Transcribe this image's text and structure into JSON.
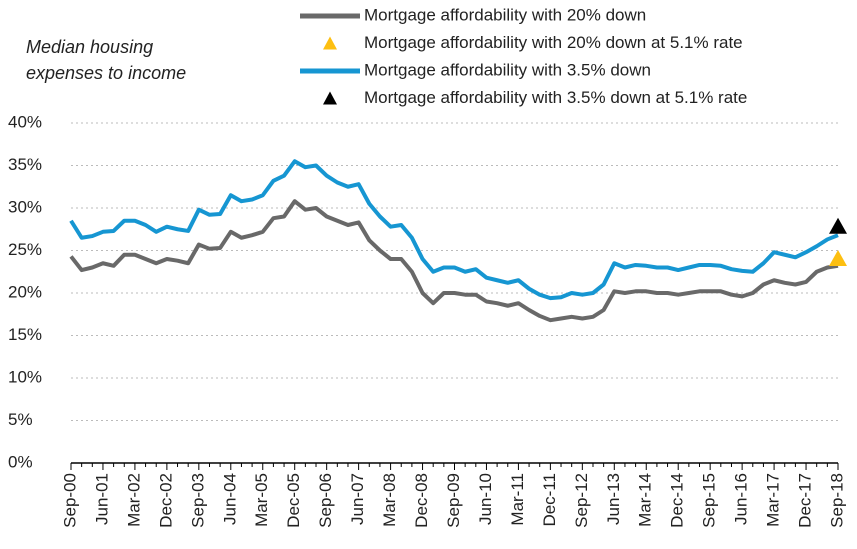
{
  "chart_data": {
    "type": "line",
    "title": "Median housing expenses to income",
    "categories": [
      "Sep-00",
      null,
      null,
      "Jun-01",
      null,
      null,
      "Mar-02",
      null,
      null,
      "Dec-02",
      null,
      null,
      "Sep-03",
      null,
      null,
      "Jun-04",
      null,
      null,
      "Mar-05",
      null,
      null,
      "Dec-05",
      null,
      null,
      "Sep-06",
      null,
      null,
      "Jun-07",
      null,
      null,
      "Mar-08",
      null,
      null,
      "Dec-08",
      null,
      null,
      "Sep-09",
      null,
      null,
      "Jun-10",
      null,
      null,
      "Mar-11",
      null,
      null,
      "Dec-11",
      null,
      null,
      "Sep-12",
      null,
      null,
      "Jun-13",
      null,
      null,
      "Mar-14",
      null,
      null,
      "Dec-14",
      null,
      null,
      "Sep-15",
      null,
      null,
      "Jun-16",
      null,
      null,
      "Mar-17",
      null,
      null,
      "Dec-17",
      null,
      null,
      "Sep-18"
    ],
    "series": [
      {
        "name": "Mortgage affordability with 20% down",
        "color": "#696969",
        "style": "line",
        "values": [
          24.3,
          22.7,
          23,
          23.5,
          23.2,
          24.5,
          24.5,
          24,
          23.5,
          24,
          23.8,
          23.5,
          25.7,
          25.2,
          25.3,
          27.2,
          26.5,
          26.8,
          27.2,
          28.8,
          29,
          30.8,
          29.8,
          30,
          29,
          28.5,
          28,
          28.3,
          26.2,
          25,
          24,
          24,
          22.5,
          20,
          18.8,
          20,
          20,
          19.8,
          19.8,
          19,
          18.8,
          18.5,
          18.8,
          18,
          17.3,
          16.8,
          17,
          17.2,
          17,
          17.2,
          18,
          20.2,
          20,
          20.2,
          20.2,
          20,
          20,
          19.8,
          20,
          20.2,
          20.2,
          20.2,
          19.8,
          19.6,
          20,
          21,
          21.5,
          21.2,
          21,
          21.3,
          22.5,
          23,
          23.2
        ]
      },
      {
        "name": "Mortgage affordability with 20% down at 5.1% rate",
        "color": "#fdbf11",
        "style": "triangle",
        "values": [
          null,
          null,
          null,
          null,
          null,
          null,
          null,
          null,
          null,
          null,
          null,
          null,
          null,
          null,
          null,
          null,
          null,
          null,
          null,
          null,
          null,
          null,
          null,
          null,
          null,
          null,
          null,
          null,
          null,
          null,
          null,
          null,
          null,
          null,
          null,
          null,
          null,
          null,
          null,
          null,
          null,
          null,
          null,
          null,
          null,
          null,
          null,
          null,
          null,
          null,
          null,
          null,
          null,
          null,
          null,
          null,
          null,
          null,
          null,
          null,
          null,
          null,
          null,
          null,
          null,
          null,
          null,
          null,
          null,
          null,
          null,
          null,
          24
        ]
      },
      {
        "name": "Mortgage affordability with 3.5% down",
        "color": "#1696d2",
        "style": "line",
        "values": [
          28.5,
          26.5,
          26.7,
          27.2,
          27.3,
          28.5,
          28.5,
          28,
          27.2,
          27.8,
          27.5,
          27.3,
          29.8,
          29.2,
          29.3,
          31.5,
          30.8,
          31,
          31.5,
          33.2,
          33.8,
          35.5,
          34.8,
          35,
          33.8,
          33,
          32.5,
          32.8,
          30.5,
          29,
          27.8,
          28,
          26.5,
          24,
          22.5,
          23,
          23,
          22.5,
          22.8,
          21.8,
          21.5,
          21.2,
          21.5,
          20.5,
          19.8,
          19.4,
          19.5,
          20,
          19.8,
          20,
          21,
          23.5,
          23,
          23.3,
          23.2,
          23,
          23,
          22.7,
          23,
          23.3,
          23.3,
          23.2,
          22.8,
          22.6,
          22.5,
          23.5,
          24.8,
          24.5,
          24.2,
          24.8,
          25.5,
          26.3,
          26.8
        ]
      },
      {
        "name": "Mortgage affordability with 3.5% down at 5.1% rate",
        "color": "#000000",
        "style": "triangle",
        "values": [
          null,
          null,
          null,
          null,
          null,
          null,
          null,
          null,
          null,
          null,
          null,
          null,
          null,
          null,
          null,
          null,
          null,
          null,
          null,
          null,
          null,
          null,
          null,
          null,
          null,
          null,
          null,
          null,
          null,
          null,
          null,
          null,
          null,
          null,
          null,
          null,
          null,
          null,
          null,
          null,
          null,
          null,
          null,
          null,
          null,
          null,
          null,
          null,
          null,
          null,
          null,
          null,
          null,
          null,
          null,
          null,
          null,
          null,
          null,
          null,
          null,
          null,
          null,
          null,
          null,
          null,
          null,
          null,
          null,
          null,
          null,
          null,
          27.8
        ]
      }
    ],
    "ylim": [
      0,
      40
    ],
    "yticks": [
      {
        "value": 0,
        "label": "0%"
      },
      {
        "value": 5,
        "label": "5%"
      },
      {
        "value": 10,
        "label": "10%"
      },
      {
        "value": 15,
        "label": "15%"
      },
      {
        "value": 20,
        "label": "20%"
      },
      {
        "value": 25,
        "label": "25%"
      },
      {
        "value": 30,
        "label": "30%"
      },
      {
        "value": 35,
        "label": "35%"
      },
      {
        "value": 40,
        "label": "40%"
      }
    ],
    "grid": true,
    "legend": "top"
  }
}
